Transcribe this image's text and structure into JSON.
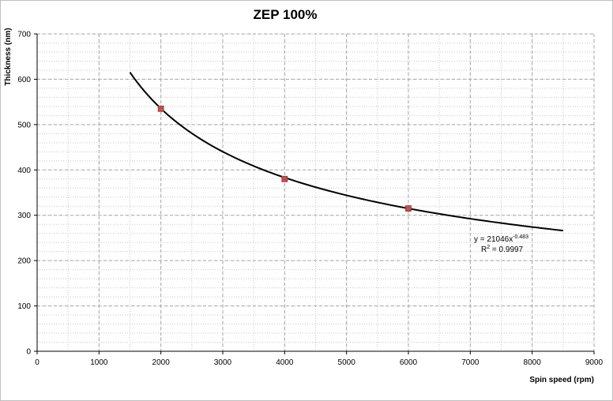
{
  "chart_data": {
    "type": "scatter",
    "title": "ZEP 100%",
    "xlabel": "Spin speed (rpm)",
    "ylabel": "Thickness (nm)",
    "xlim": [
      0,
      9000
    ],
    "ylim": [
      0,
      700
    ],
    "x_ticks": [
      0,
      1000,
      2000,
      3000,
      4000,
      5000,
      6000,
      7000,
      8000,
      9000
    ],
    "y_ticks": [
      0,
      100,
      200,
      300,
      400,
      500,
      600,
      700
    ],
    "grid": true,
    "legend": "none",
    "series": [
      {
        "x": [
          2000,
          4000,
          6000
        ],
        "y": [
          535,
          380,
          315
        ],
        "color": "#c0504d"
      }
    ],
    "trendline": {
      "type": "power",
      "a": 21046,
      "b": -0.483,
      "x_range": [
        1500,
        8500
      ],
      "color": "#000000"
    },
    "annotations": {
      "equation_prefix": "y = 21046x",
      "equation_exponent": "-0.483",
      "r2_prefix": "R",
      "r2_exponent": "2",
      "r2_value": " = 0.9997"
    }
  }
}
